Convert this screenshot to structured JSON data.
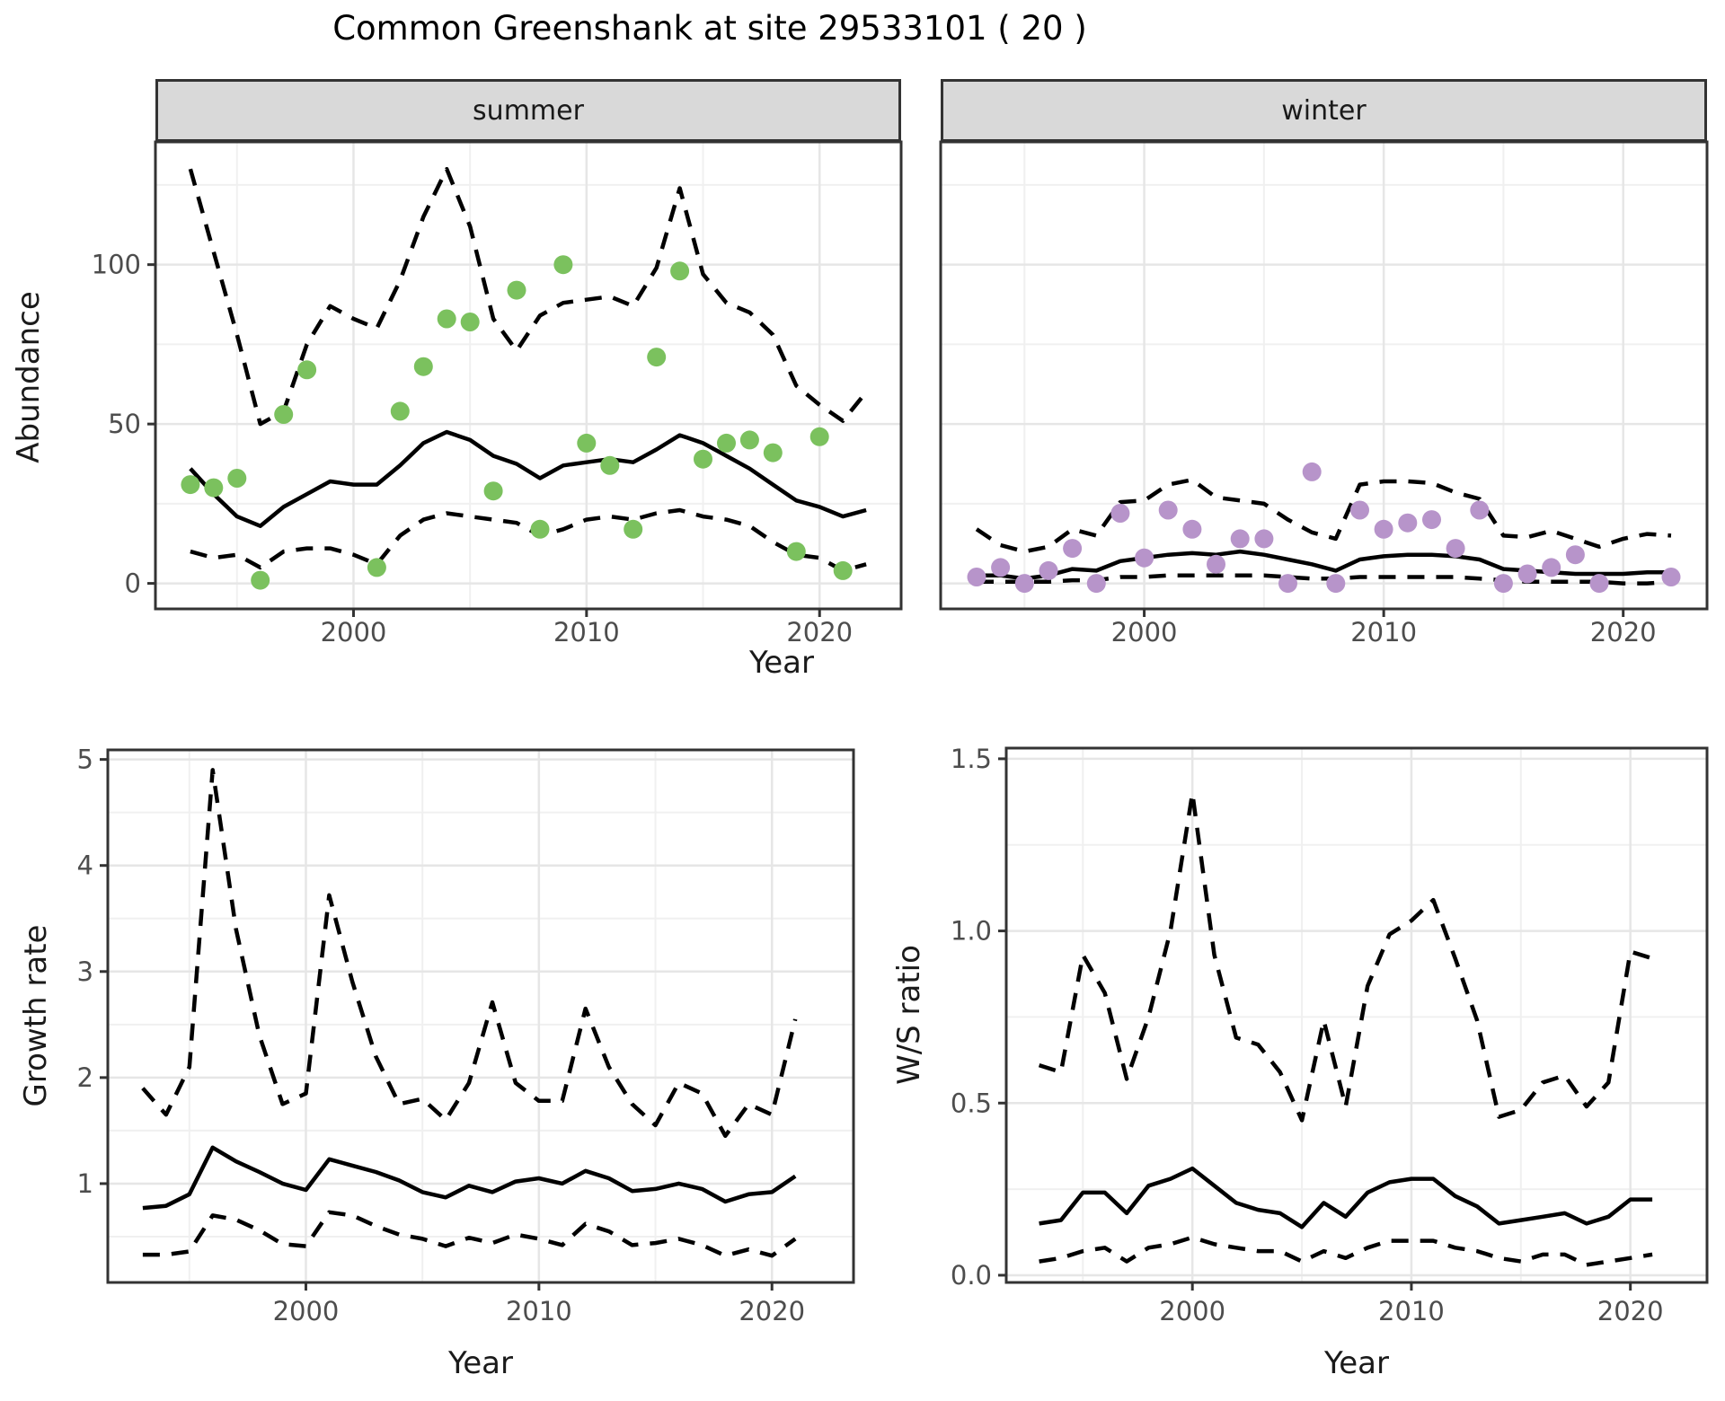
{
  "title": "Common Greenshank at site 29533101 ( 20 )",
  "axis_labels": {
    "x": "Year",
    "y_abundance": "Abundance",
    "y_growth": "Growth rate",
    "y_ws": "W/S ratio"
  },
  "facets": [
    {
      "label": "summer"
    },
    {
      "label": "winter"
    }
  ],
  "colors": {
    "summer_points": "#7BC15E",
    "winter_points": "#B794CA",
    "line": "#000000",
    "grid_major": "#E6E6E6",
    "grid_minor": "#F0F0F0",
    "strip_bg": "#D9D9D9",
    "panel_border": "#333333",
    "tick_text": "#4D4D4D"
  },
  "chart_data": [
    {
      "panel": "summer",
      "type": "line+scatter",
      "strip_label": "summer",
      "xlabel": "Year",
      "ylabel": "Abundance",
      "xlim": [
        1991.5,
        2023.5
      ],
      "ylim": [
        -8,
        138.5
      ],
      "x_ticks": [
        2000,
        2010,
        2020
      ],
      "x_tick_labels": [
        "2000",
        "2010",
        "2020"
      ],
      "x_minor": [
        1995,
        2005,
        2015
      ],
      "y_ticks": [
        0,
        50,
        100
      ],
      "y_tick_labels": [
        "0",
        "50",
        "100"
      ],
      "y_minor": [
        25,
        75,
        125
      ],
      "years": [
        1993,
        1994,
        1995,
        1996,
        1997,
        1998,
        1999,
        2000,
        2001,
        2002,
        2003,
        2004,
        2005,
        2006,
        2007,
        2008,
        2009,
        2010,
        2011,
        2012,
        2013,
        2014,
        2015,
        2016,
        2017,
        2018,
        2019,
        2020,
        2021,
        2022
      ],
      "series": [
        {
          "name": "mean",
          "style": "solid",
          "values": [
            36,
            28,
            21,
            18,
            24,
            28,
            32,
            31,
            31,
            37,
            44,
            47.5,
            45,
            40,
            37.5,
            33,
            37,
            38,
            39,
            38,
            42,
            46.5,
            44,
            40,
            36,
            31,
            26,
            24,
            21,
            23
          ]
        },
        {
          "name": "upper_ci",
          "style": "dashed",
          "values": [
            130,
            104,
            78,
            50,
            54,
            75,
            87,
            83,
            80,
            95,
            115,
            130,
            112,
            83,
            73,
            84,
            88,
            89,
            90,
            87,
            99,
            124,
            97,
            88,
            85,
            78,
            62,
            56,
            51,
            60
          ]
        },
        {
          "name": "lower_ci",
          "style": "dashed",
          "values": [
            10,
            8,
            9,
            5,
            10,
            11,
            11,
            9,
            6,
            15,
            20,
            22,
            21,
            20,
            19,
            15,
            17,
            20,
            21,
            20,
            22,
            23,
            21,
            20,
            18,
            13,
            9,
            8,
            4,
            6
          ]
        }
      ],
      "points": {
        "name": "observed-counts-summer",
        "color": "#7BC15E",
        "years": [
          1993,
          1994,
          1995,
          1996,
          1997,
          1998,
          2001,
          2002,
          2003,
          2004,
          2005,
          2006,
          2007,
          2008,
          2009,
          2010,
          2011,
          2012,
          2013,
          2014,
          2015,
          2016,
          2017,
          2018,
          2019,
          2020,
          2021
        ],
        "values": [
          31,
          30,
          33,
          1,
          53,
          67,
          5,
          54,
          68,
          83,
          82,
          29,
          92,
          17,
          100,
          44,
          37,
          17,
          71,
          98,
          39,
          44,
          45,
          41,
          10,
          46,
          4
        ]
      }
    },
    {
      "panel": "winter",
      "type": "line+scatter",
      "strip_label": "winter",
      "xlabel": "Year",
      "ylabel": "Abundance",
      "xlim": [
        1991.5,
        2023.5
      ],
      "ylim": [
        -8,
        138.5
      ],
      "x_ticks": [
        2000,
        2010,
        2020
      ],
      "x_tick_labels": [
        "2000",
        "2010",
        "2020"
      ],
      "x_minor": [
        1995,
        2005,
        2015
      ],
      "y_ticks": [
        0,
        50,
        100
      ],
      "y_tick_labels": [],
      "y_minor": [
        25,
        75,
        125
      ],
      "years": [
        1993,
        1994,
        1995,
        1996,
        1997,
        1998,
        1999,
        2000,
        2001,
        2002,
        2003,
        2004,
        2005,
        2006,
        2007,
        2008,
        2009,
        2010,
        2011,
        2012,
        2013,
        2014,
        2015,
        2016,
        2017,
        2018,
        2019,
        2020,
        2021,
        2022
      ],
      "series": [
        {
          "name": "mean",
          "style": "solid",
          "values": [
            2.5,
            2.5,
            1.5,
            2.5,
            4.5,
            4,
            7,
            8,
            9,
            9.5,
            9,
            10,
            9,
            7.5,
            6,
            4,
            7.5,
            8.5,
            9,
            9,
            8.5,
            7.5,
            4.5,
            4,
            3.5,
            3,
            3,
            3,
            3.5,
            3.5
          ]
        },
        {
          "name": "upper_ci",
          "style": "dashed",
          "values": [
            17,
            12,
            10,
            11.5,
            17,
            15,
            25.5,
            26,
            31,
            32.5,
            27,
            26,
            25,
            20,
            16,
            14,
            31,
            32,
            32,
            31.5,
            28.5,
            26.5,
            15,
            14.5,
            16.5,
            14,
            11.5,
            14,
            15.5,
            15
          ]
        },
        {
          "name": "lower_ci",
          "style": "dashed",
          "values": [
            0.5,
            0.5,
            0.5,
            0.5,
            1,
            1,
            2,
            2,
            2.5,
            2.5,
            2.5,
            2.5,
            2.5,
            2,
            1.5,
            1.5,
            2,
            2,
            2,
            2,
            2,
            1.5,
            1,
            0.5,
            0.5,
            0.5,
            0.5,
            0,
            0,
            0.5
          ]
        }
      ],
      "points": {
        "name": "observed-counts-winter",
        "color": "#B794CA",
        "years": [
          1993,
          1994,
          1995,
          1996,
          1997,
          1998,
          1999,
          2000,
          2001,
          2002,
          2003,
          2004,
          2005,
          2006,
          2007,
          2008,
          2009,
          2010,
          2011,
          2012,
          2013,
          2014,
          2015,
          2016,
          2017,
          2018,
          2019,
          2022
        ],
        "values": [
          2,
          5,
          0,
          4,
          11,
          0,
          22,
          8,
          23,
          17,
          6,
          14,
          14,
          0,
          35,
          0,
          23,
          17,
          19,
          20,
          11,
          23,
          0,
          3,
          5,
          9,
          0,
          2
        ]
      }
    },
    {
      "panel": "growth",
      "type": "line",
      "xlabel": "Year",
      "ylabel": "Growth rate",
      "xlim": [
        1991.5,
        2023.5
      ],
      "ylim": [
        0.068,
        5.09
      ],
      "x_ticks": [
        2000,
        2010,
        2020
      ],
      "x_tick_labels": [
        "2000",
        "2010",
        "2020"
      ],
      "x_minor": [
        1995,
        2005,
        2015
      ],
      "y_ticks": [
        1,
        2,
        3,
        4,
        5
      ],
      "y_tick_labels": [
        "1",
        "2",
        "3",
        "4",
        "5"
      ],
      "y_minor": [
        0.5,
        1.5,
        2.5,
        3.5,
        4.5
      ],
      "years": [
        1993,
        1994,
        1995,
        1996,
        1997,
        1998,
        1999,
        2000,
        2001,
        2002,
        2003,
        2004,
        2005,
        2006,
        2007,
        2008,
        2009,
        2010,
        2011,
        2012,
        2013,
        2014,
        2015,
        2016,
        2017,
        2018,
        2019,
        2020,
        2021
      ],
      "series": [
        {
          "name": "mean",
          "style": "solid",
          "values": [
            0.77,
            0.79,
            0.9,
            1.34,
            1.21,
            1.11,
            1.0,
            0.94,
            1.23,
            1.17,
            1.11,
            1.03,
            0.92,
            0.87,
            0.98,
            0.92,
            1.02,
            1.05,
            1.0,
            1.12,
            1.05,
            0.93,
            0.95,
            1.0,
            0.95,
            0.83,
            0.9,
            0.92,
            1.07
          ]
        },
        {
          "name": "upper_ci",
          "style": "dashed",
          "values": [
            1.9,
            1.65,
            2.1,
            4.9,
            3.4,
            2.4,
            1.75,
            1.85,
            3.72,
            2.9,
            2.2,
            1.75,
            1.8,
            1.6,
            1.95,
            2.71,
            1.95,
            1.78,
            1.78,
            2.65,
            2.1,
            1.75,
            1.55,
            1.95,
            1.85,
            1.45,
            1.75,
            1.65,
            2.55
          ]
        },
        {
          "name": "lower_ci",
          "style": "dashed",
          "values": [
            0.33,
            0.33,
            0.36,
            0.7,
            0.66,
            0.56,
            0.43,
            0.41,
            0.73,
            0.7,
            0.6,
            0.52,
            0.48,
            0.41,
            0.49,
            0.44,
            0.52,
            0.48,
            0.42,
            0.62,
            0.55,
            0.42,
            0.44,
            0.48,
            0.42,
            0.32,
            0.38,
            0.32,
            0.48
          ]
        }
      ]
    },
    {
      "panel": "ws",
      "type": "line",
      "xlabel": "Year",
      "ylabel": "W/S ratio",
      "xlim": [
        1991.5,
        2023.5
      ],
      "ylim": [
        -0.021,
        1.531
      ],
      "x_ticks": [
        2000,
        2010,
        2020
      ],
      "x_tick_labels": [
        "2000",
        "2010",
        "2020"
      ],
      "x_minor": [
        1995,
        2005,
        2015
      ],
      "y_ticks": [
        0,
        0.5,
        1,
        1.5
      ],
      "y_tick_labels": [
        "0.0",
        "0.5",
        "1.0",
        "1.5"
      ],
      "y_minor": [
        0.25,
        0.75,
        1.25
      ],
      "years": [
        1993,
        1994,
        1995,
        1996,
        1997,
        1998,
        1999,
        2000,
        2001,
        2002,
        2003,
        2004,
        2005,
        2006,
        2007,
        2008,
        2009,
        2010,
        2011,
        2012,
        2013,
        2014,
        2015,
        2016,
        2017,
        2018,
        2019,
        2020,
        2021
      ],
      "series": [
        {
          "name": "mean",
          "style": "solid",
          "values": [
            0.15,
            0.16,
            0.24,
            0.24,
            0.18,
            0.26,
            0.28,
            0.31,
            0.26,
            0.21,
            0.19,
            0.18,
            0.14,
            0.21,
            0.17,
            0.24,
            0.27,
            0.28,
            0.28,
            0.23,
            0.2,
            0.15,
            0.16,
            0.17,
            0.18,
            0.15,
            0.17,
            0.22,
            0.22
          ]
        },
        {
          "name": "upper_ci",
          "style": "dashed",
          "values": [
            0.61,
            0.59,
            0.93,
            0.82,
            0.57,
            0.75,
            1.0,
            1.4,
            0.93,
            0.69,
            0.67,
            0.59,
            0.45,
            0.74,
            0.49,
            0.84,
            0.99,
            1.03,
            1.09,
            0.92,
            0.74,
            0.46,
            0.48,
            0.56,
            0.58,
            0.49,
            0.56,
            0.94,
            0.92
          ]
        },
        {
          "name": "lower_ci",
          "style": "dashed",
          "values": [
            0.04,
            0.05,
            0.07,
            0.08,
            0.04,
            0.08,
            0.09,
            0.11,
            0.09,
            0.08,
            0.07,
            0.07,
            0.04,
            0.07,
            0.05,
            0.08,
            0.1,
            0.1,
            0.1,
            0.08,
            0.07,
            0.05,
            0.04,
            0.06,
            0.06,
            0.03,
            0.04,
            0.05,
            0.06
          ]
        }
      ]
    }
  ]
}
